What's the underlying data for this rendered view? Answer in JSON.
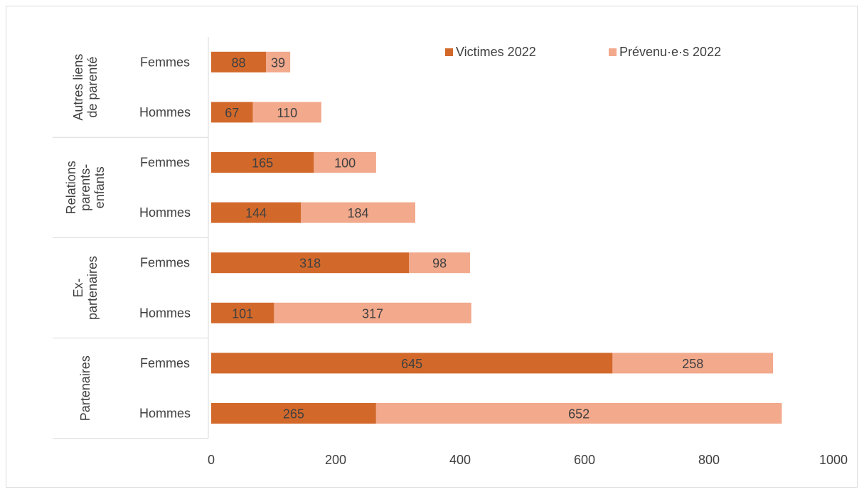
{
  "chart_data": {
    "type": "bar",
    "orientation": "horizontal",
    "stacked": true,
    "groups": [
      {
        "label": "Autres liens de parenté",
        "rows": [
          {
            "label": "Femmes",
            "values": [
              88,
              39
            ]
          },
          {
            "label": "Hommes",
            "values": [
              67,
              110
            ]
          }
        ]
      },
      {
        "label": "Relations parents-enfants",
        "rows": [
          {
            "label": "Femmes",
            "values": [
              165,
              100
            ]
          },
          {
            "label": "Hommes",
            "values": [
              144,
              184
            ]
          }
        ]
      },
      {
        "label": "Ex-partenaires",
        "rows": [
          {
            "label": "Femmes",
            "values": [
              318,
              98
            ]
          },
          {
            "label": "Hommes",
            "values": [
              101,
              317
            ]
          }
        ]
      },
      {
        "label": "Partenaires",
        "rows": [
          {
            "label": "Femmes",
            "values": [
              645,
              258
            ]
          },
          {
            "label": "Hommes",
            "values": [
              265,
              652
            ]
          }
        ]
      }
    ],
    "series": [
      {
        "name": "Victimes  2022",
        "color": "#d2692b"
      },
      {
        "name": "Prévenu·e·s 2022",
        "color": "#f2a98c"
      }
    ],
    "xlim": [
      0,
      1000
    ],
    "xticks": [
      0,
      200,
      400,
      600,
      800,
      1000
    ],
    "grid": false,
    "legend": "top-right"
  }
}
